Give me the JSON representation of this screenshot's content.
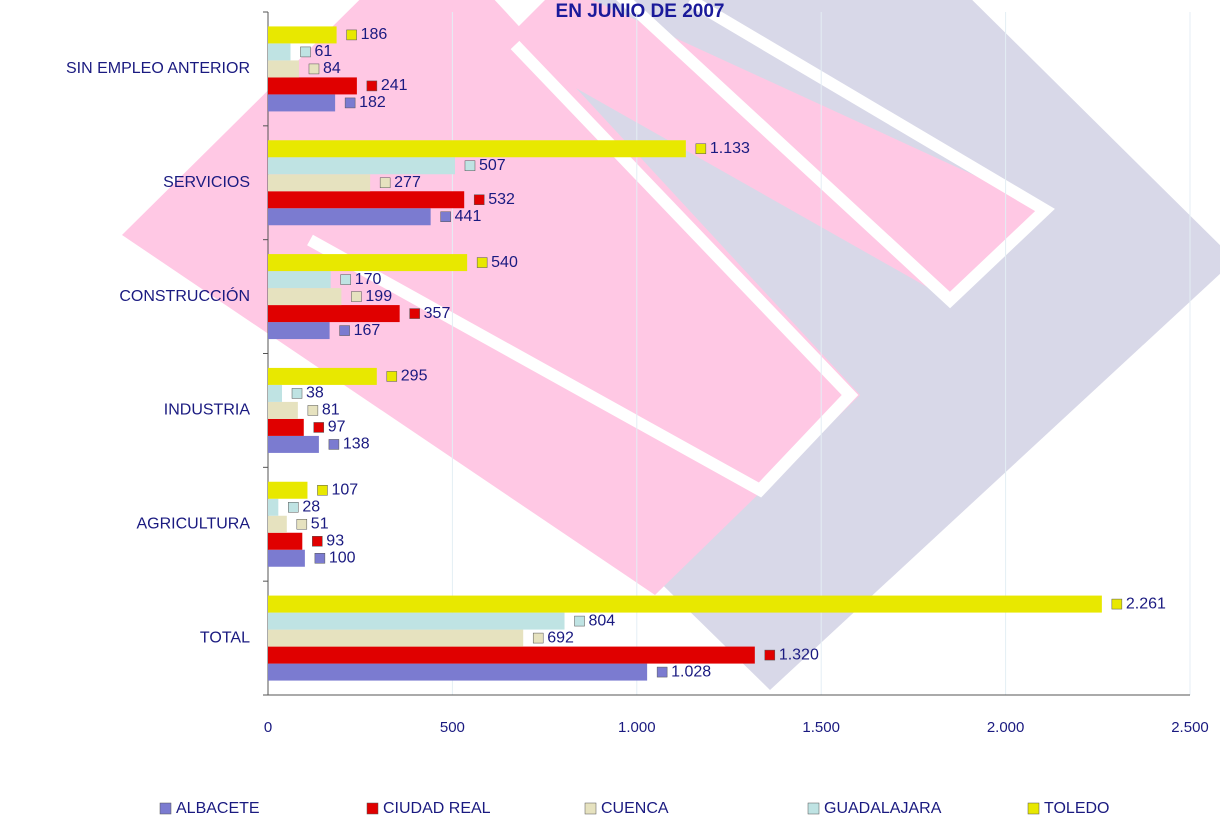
{
  "chart_data": {
    "type": "bar",
    "orientation": "horizontal",
    "title": "EN JUNIO DE 2007",
    "categories": [
      "SIN EMPLEO ANTERIOR",
      "SERVICIOS",
      "CONSTRUCCIÓN",
      "INDUSTRIA",
      "AGRICULTURA",
      "TOTAL"
    ],
    "series": [
      {
        "name": "ALBACETE",
        "color": "#7b7bd0",
        "values": [
          182,
          441,
          167,
          138,
          100,
          1028
        ],
        "value_labels": [
          "182",
          "441",
          "167",
          "138",
          "100",
          "1.028"
        ]
      },
      {
        "name": "CIUDAD REAL",
        "color": "#e00000",
        "values": [
          241,
          532,
          357,
          97,
          93,
          1320
        ],
        "value_labels": [
          "241",
          "532",
          "357",
          "97",
          "93",
          "1.320"
        ]
      },
      {
        "name": "CUENCA",
        "color": "#e6e2bf",
        "values": [
          84,
          277,
          199,
          81,
          51,
          692
        ],
        "value_labels": [
          "84",
          "277",
          "199",
          "81",
          "51",
          "692"
        ]
      },
      {
        "name": "GUADALAJARA",
        "color": "#bfe3e3",
        "values": [
          61,
          507,
          170,
          38,
          28,
          804
        ],
        "value_labels": [
          "61",
          "507",
          "170",
          "38",
          "28",
          "804"
        ]
      },
      {
        "name": "TOLEDO",
        "color": "#e8e800",
        "values": [
          186,
          1133,
          540,
          295,
          107,
          2261
        ],
        "value_labels": [
          "186",
          "1.133",
          "540",
          "295",
          "107",
          "2.261"
        ]
      }
    ],
    "xlim": [
      0,
      2500
    ],
    "xticks": [
      0,
      500,
      {
        "value": 1000,
        "label": "1.000"
      },
      {
        "value": 1500,
        "label": "1.500"
      },
      {
        "value": 2000,
        "label": "2.000"
      },
      {
        "value": 2500,
        "label": "2.500"
      }
    ],
    "grid": true,
    "legend": "bottom"
  }
}
